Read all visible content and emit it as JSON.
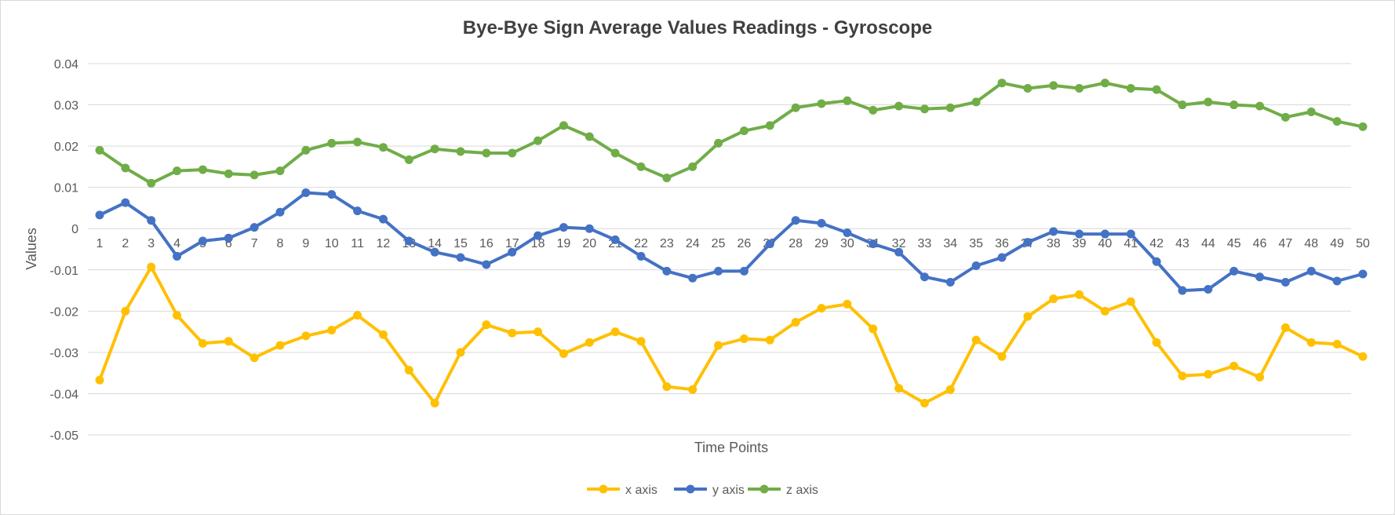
{
  "chart_data": {
    "type": "line",
    "title": "Bye-Bye Sign Average Values Readings - Gyroscope",
    "xlabel": "Time Points",
    "ylabel": "Values",
    "ylim": [
      -0.05,
      0.04
    ],
    "yticks": [
      "0.04",
      "0.03",
      "0.02",
      "0.01",
      "0",
      "-0.01",
      "-0.02",
      "-0.03",
      "-0.04",
      "-0.05"
    ],
    "categories": [
      "1",
      "2",
      "3",
      "4",
      "5",
      "6",
      "7",
      "8",
      "9",
      "10",
      "11",
      "12",
      "13",
      "14",
      "15",
      "16",
      "17",
      "18",
      "19",
      "20",
      "21",
      "22",
      "23",
      "24",
      "25",
      "26",
      "27",
      "28",
      "29",
      "30",
      "31",
      "32",
      "33",
      "34",
      "35",
      "36",
      "37",
      "38",
      "39",
      "40",
      "41",
      "42",
      "43",
      "44",
      "45",
      "46",
      "47",
      "48",
      "49",
      "50"
    ],
    "grid": true,
    "legend_position": "bottom",
    "series": [
      {
        "name": "x axis",
        "color": "#FFC000",
        "values": [
          -0.0367,
          -0.02,
          -0.0093,
          -0.021,
          -0.0278,
          -0.0273,
          -0.0313,
          -0.0283,
          -0.026,
          -0.0246,
          -0.021,
          -0.0257,
          -0.0343,
          -0.0423,
          -0.03,
          -0.0233,
          -0.0253,
          -0.025,
          -0.0303,
          -0.0276,
          -0.025,
          -0.0273,
          -0.0383,
          -0.039,
          -0.0283,
          -0.0267,
          -0.027,
          -0.0227,
          -0.0193,
          -0.0183,
          -0.0243,
          -0.0387,
          -0.0423,
          -0.039,
          -0.027,
          -0.031,
          -0.0213,
          -0.017,
          -0.016,
          -0.02,
          -0.0177,
          -0.0276,
          -0.0357,
          -0.0353,
          -0.0333,
          -0.036,
          -0.024,
          -0.0276,
          -0.028,
          -0.031
        ]
      },
      {
        "name": "y axis",
        "color": "#4472C4",
        "values": [
          0.0033,
          0.0063,
          0.002,
          -0.0067,
          -0.003,
          -0.0023,
          0.0003,
          0.004,
          0.0087,
          0.0083,
          0.0043,
          0.0023,
          -0.003,
          -0.0057,
          -0.007,
          -0.0087,
          -0.0057,
          -0.0017,
          0.0003,
          0.0,
          -0.0027,
          -0.0067,
          -0.0103,
          -0.012,
          -0.0103,
          -0.0103,
          -0.0037,
          0.002,
          0.0013,
          -0.001,
          -0.0037,
          -0.0057,
          -0.0117,
          -0.013,
          -0.009,
          -0.007,
          -0.0033,
          -0.0007,
          -0.0013,
          -0.0013,
          -0.0013,
          -0.008,
          -0.015,
          -0.0147,
          -0.0103,
          -0.0117,
          -0.013,
          -0.0103,
          -0.0127,
          -0.011
        ]
      },
      {
        "name": "z axis",
        "color": "#70AD47",
        "values": [
          0.019,
          0.0147,
          0.011,
          0.014,
          0.0143,
          0.0133,
          0.013,
          0.014,
          0.019,
          0.0207,
          0.021,
          0.0197,
          0.0167,
          0.0193,
          0.0187,
          0.0183,
          0.0183,
          0.0213,
          0.025,
          0.0223,
          0.0183,
          0.015,
          0.0123,
          0.015,
          0.0207,
          0.0237,
          0.025,
          0.0293,
          0.0303,
          0.031,
          0.0287,
          0.0297,
          0.029,
          0.0293,
          0.0307,
          0.0353,
          0.034,
          0.0347,
          0.034,
          0.0353,
          0.034,
          0.0337,
          0.03,
          0.0307,
          0.03,
          0.0297,
          0.027,
          0.0283,
          0.026,
          0.0247
        ]
      }
    ]
  }
}
